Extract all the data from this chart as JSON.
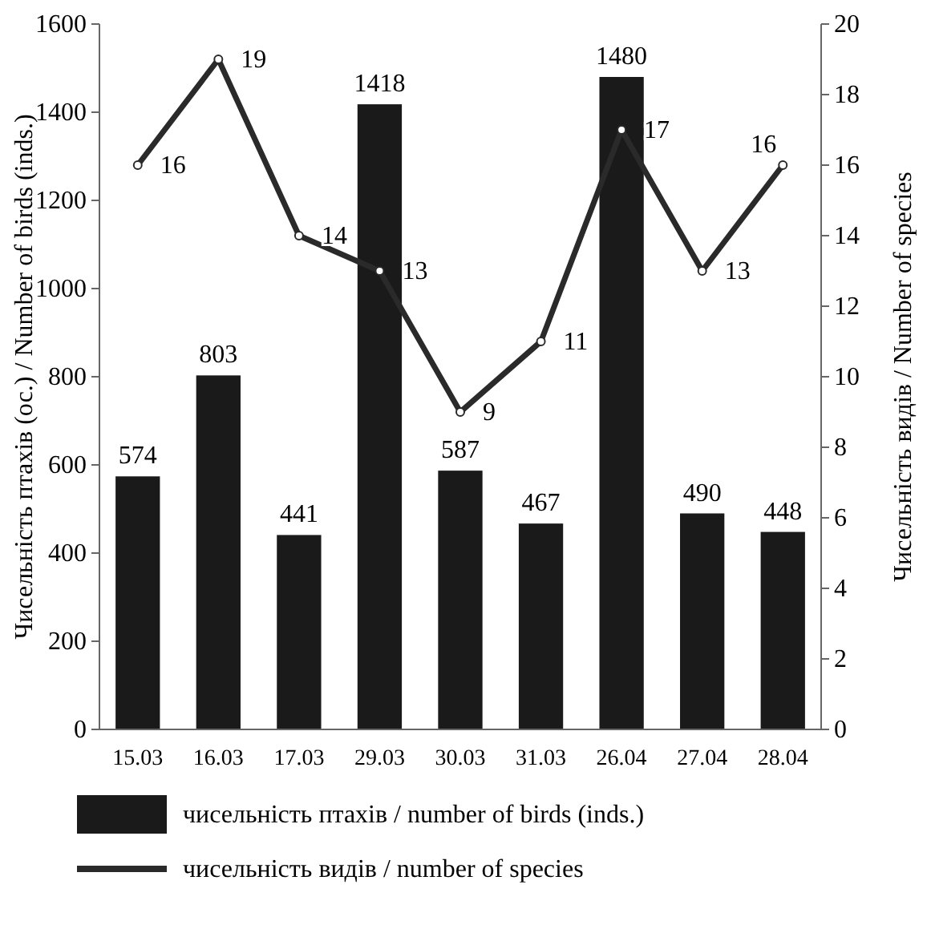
{
  "chart_data": {
    "type": "bar",
    "categories": [
      "15.03",
      "16.03",
      "17.03",
      "29.03",
      "30.03",
      "31.03",
      "26.04",
      "27.04",
      "28.04"
    ],
    "ylabel": "Чисельність птахів (ос.) / Number of birds (inds.)",
    "y2label": "Чисельність видів / Number of species",
    "ylim": [
      0,
      1600
    ],
    "yticks": [
      0,
      200,
      400,
      600,
      800,
      1000,
      1200,
      1400,
      1600
    ],
    "y2lim": [
      0,
      20
    ],
    "y2ticks": [
      0,
      2,
      4,
      6,
      8,
      10,
      12,
      14,
      16,
      18,
      20
    ],
    "series": [
      {
        "name": "чисельність птахів / number of birds (inds.)",
        "color": "#1a1a1a",
        "values": [
          574,
          803,
          441,
          1418,
          587,
          467,
          1480,
          490,
          448
        ]
      },
      {
        "name": "чисельність видів / number of species",
        "type": "line",
        "axis": "y2",
        "color": "#2a2a2a",
        "marker": "circle",
        "values": [
          16,
          19,
          14,
          13,
          9,
          11,
          17,
          13,
          16
        ]
      }
    ],
    "data_labels": true,
    "legend": "bottom",
    "grid": false
  }
}
